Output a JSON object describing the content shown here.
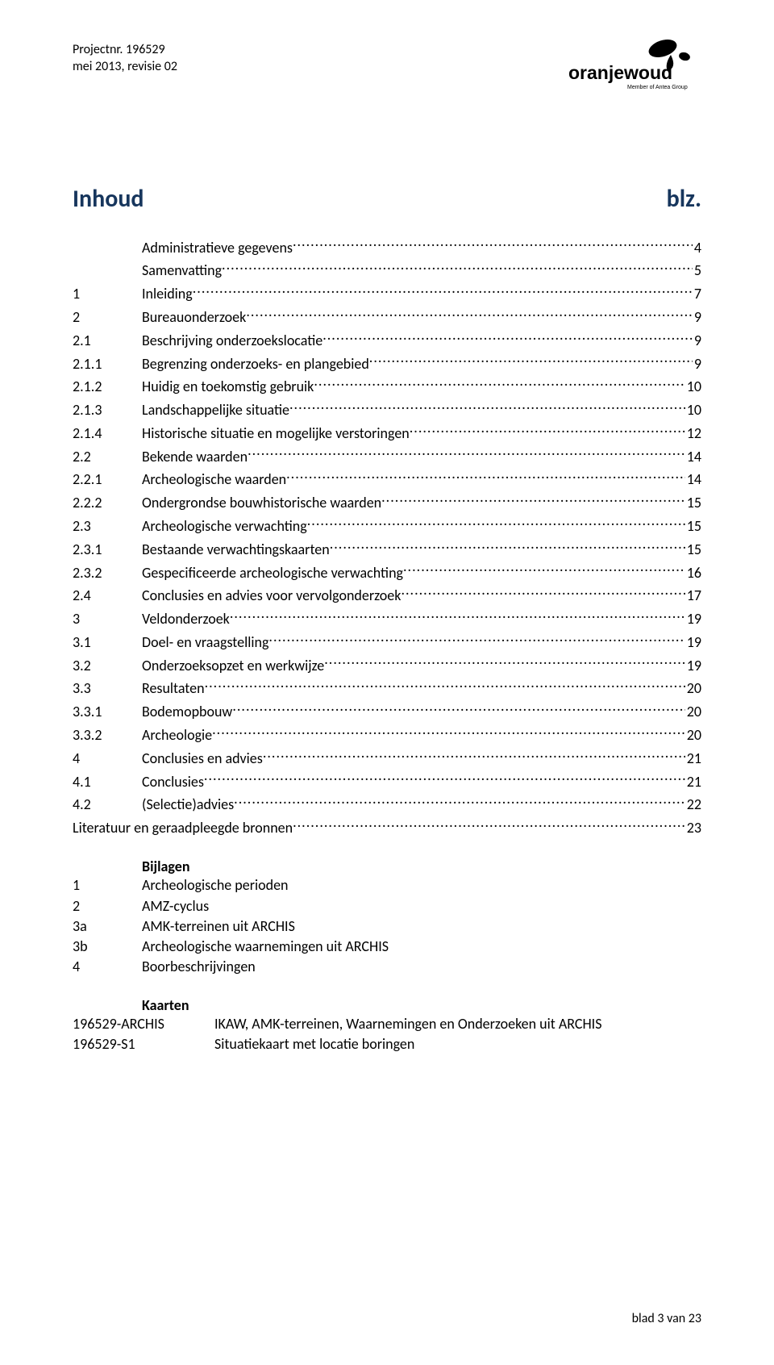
{
  "header": {
    "project_line": "Projectnr. 196529",
    "date_line": "mei 2013, revisie 02",
    "logo_text": "oranjewoud",
    "logo_sub": "Member of Antea Group"
  },
  "title": {
    "left": "Inhoud",
    "right": "blz."
  },
  "toc": [
    {
      "num": "",
      "indent": true,
      "label": "Administratieve gegevens",
      "page": "4"
    },
    {
      "num": "",
      "indent": true,
      "label": "Samenvatting",
      "page": "5"
    },
    {
      "num": "1",
      "indent": false,
      "label": "Inleiding",
      "page": "7"
    },
    {
      "num": "2",
      "indent": false,
      "label": "Bureauonderzoek",
      "page": "9"
    },
    {
      "num": "2.1",
      "indent": false,
      "label": "Beschrijving onderzoekslocatie",
      "page": "9"
    },
    {
      "num": "2.1.1",
      "indent": false,
      "label": "Begrenzing onderzoeks- en plangebied",
      "page": "9"
    },
    {
      "num": "2.1.2",
      "indent": false,
      "label": "Huidig en toekomstig gebruik",
      "page": "10"
    },
    {
      "num": "2.1.3",
      "indent": false,
      "label": "Landschappelijke situatie",
      "page": "10"
    },
    {
      "num": "2.1.4",
      "indent": false,
      "label": "Historische situatie en mogelijke verstoringen",
      "page": "12"
    },
    {
      "num": "2.2",
      "indent": false,
      "label": "Bekende waarden",
      "page": "14"
    },
    {
      "num": "2.2.1",
      "indent": false,
      "label": "Archeologische waarden",
      "page": "14"
    },
    {
      "num": "2.2.2",
      "indent": false,
      "label": "Ondergrondse bouwhistorische waarden",
      "page": "15"
    },
    {
      "num": "2.3",
      "indent": false,
      "label": "Archeologische verwachting",
      "page": "15"
    },
    {
      "num": "2.3.1",
      "indent": false,
      "label": "Bestaande verwachtingskaarten",
      "page": "15"
    },
    {
      "num": "2.3.2",
      "indent": false,
      "label": "Gespecificeerde archeologische verwachting",
      "page": "16"
    },
    {
      "num": "2.4",
      "indent": false,
      "label": "Conclusies en advies voor vervolgonderzoek",
      "page": "17"
    },
    {
      "num": "3",
      "indent": false,
      "label": "Veldonderzoek",
      "page": "19"
    },
    {
      "num": "3.1",
      "indent": false,
      "label": "Doel- en vraagstelling",
      "page": "19"
    },
    {
      "num": "3.2",
      "indent": false,
      "label": "Onderzoeksopzet en werkwijze",
      "page": "19"
    },
    {
      "num": "3.3",
      "indent": false,
      "label": "Resultaten",
      "page": "20"
    },
    {
      "num": "3.3.1",
      "indent": false,
      "label": "Bodemopbouw",
      "page": "20"
    },
    {
      "num": "3.3.2",
      "indent": false,
      "label": "Archeologie",
      "page": "20"
    },
    {
      "num": "4",
      "indent": false,
      "label": "Conclusies en advies",
      "page": "21"
    },
    {
      "num": "4.1",
      "indent": false,
      "label": "Conclusies",
      "page": "21"
    },
    {
      "num": "4.2",
      "indent": false,
      "label": "(Selectie)advies",
      "page": "22"
    },
    {
      "num": "",
      "indent": false,
      "span": true,
      "label": "Literatuur en geraadpleegde bronnen",
      "page": "23"
    }
  ],
  "bijlagen": {
    "heading": "Bijlagen",
    "items": [
      {
        "num": "1",
        "label": "Archeologische perioden"
      },
      {
        "num": "2",
        "label": "AMZ-cyclus"
      },
      {
        "num": "3a",
        "label": "AMK-terreinen uit ARCHIS"
      },
      {
        "num": "3b",
        "label": "Archeologische waarnemingen uit ARCHIS"
      },
      {
        "num": "4",
        "label": "Boorbeschrijvingen"
      }
    ]
  },
  "kaarten": {
    "heading": "Kaarten",
    "items": [
      {
        "num": "196529-ARCHIS",
        "label": "IKAW, AMK-terreinen, Waarnemingen en Onderzoeken uit ARCHIS"
      },
      {
        "num": "196529-S1",
        "label": "Situatiekaart met locatie boringen"
      }
    ]
  },
  "footer": "blad 3 van 23",
  "colors": {
    "title_color": "#17365d",
    "text_color": "#000000",
    "background": "#ffffff"
  }
}
